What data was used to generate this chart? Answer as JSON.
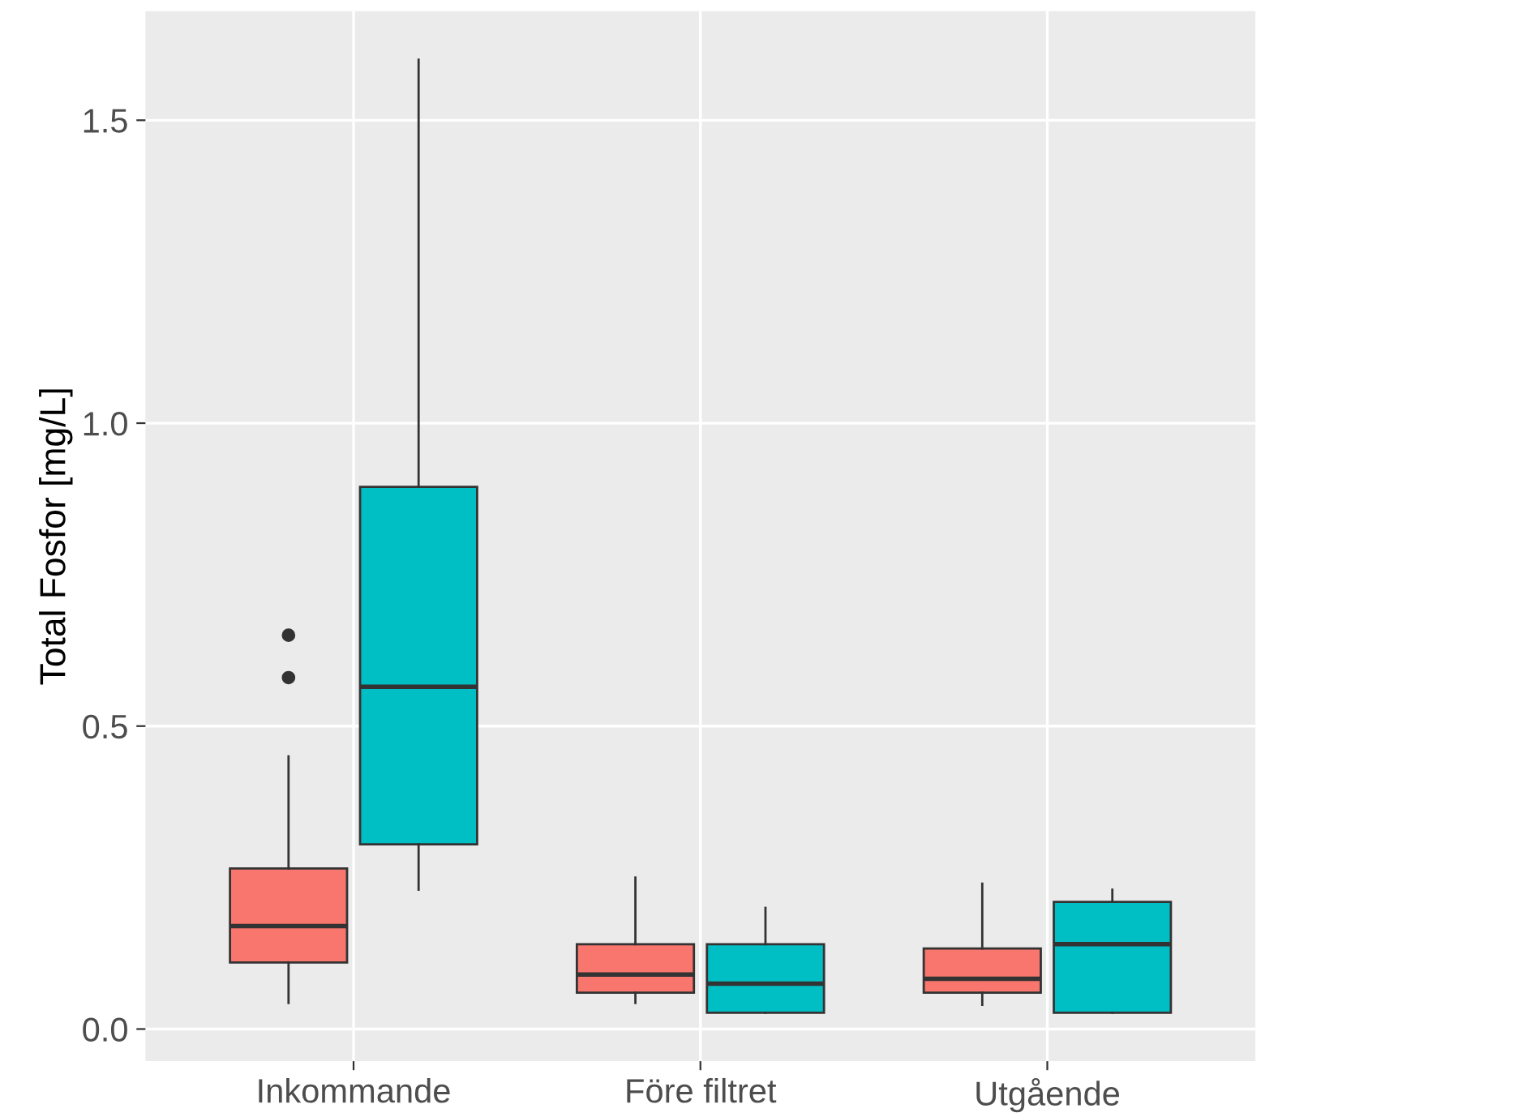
{
  "chart_data": {
    "type": "box",
    "ylabel": "Total Fosfor [mg/L]",
    "categories": [
      "Inkommande",
      "Före filtret",
      "Utgående"
    ],
    "series": [
      {
        "color": "#f8766d",
        "boxes": [
          {
            "low": 0.043,
            "q1": 0.11,
            "median": 0.17,
            "q3": 0.265,
            "high": 0.45,
            "outliers": [
              0.58,
              0.65
            ]
          },
          {
            "low": 0.043,
            "q1": 0.06,
            "median": 0.09,
            "q3": 0.14,
            "high": 0.25
          },
          {
            "low": 0.04,
            "q1": 0.06,
            "median": 0.083,
            "q3": 0.133,
            "high": 0.24
          }
        ]
      },
      {
        "color": "#00bfc4",
        "boxes": [
          {
            "low": 0.23,
            "q1": 0.305,
            "median": 0.565,
            "q3": 0.895,
            "high": 1.6
          },
          {
            "low": 0.027,
            "q1": 0.027,
            "median": 0.075,
            "q3": 0.14,
            "high": 0.2
          },
          {
            "low": 0.027,
            "q1": 0.027,
            "median": 0.14,
            "q3": 0.21,
            "high": 0.23
          }
        ]
      }
    ],
    "ylim": [
      -0.053,
      1.68
    ],
    "yticks": [
      {
        "value": 0,
        "label": "0.0"
      },
      0.5,
      {
        "value": 1,
        "label": "1.0"
      },
      1.5
    ],
    "grid": true
  }
}
